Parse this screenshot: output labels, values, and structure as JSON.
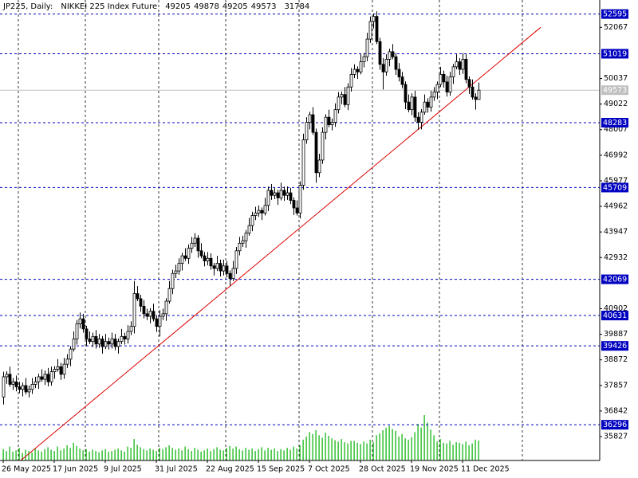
{
  "chart_data": {
    "type": "candlestick",
    "symbol": "JP225, Daily:",
    "description": "NIKKEI 225 Index Future",
    "categories": [
      "26 May 2025",
      null,
      null,
      null,
      null,
      null,
      null,
      null,
      null,
      null,
      null,
      null,
      null,
      null,
      null,
      null,
      "17 Jun 2025",
      null,
      null,
      null,
      null,
      null,
      null,
      null,
      null,
      null,
      null,
      null,
      null,
      null,
      null,
      null,
      "9 Jul 2025",
      null,
      null,
      null,
      null,
      null,
      null,
      null,
      null,
      null,
      null,
      null,
      null,
      null,
      null,
      null,
      "31 Jul 2025",
      null,
      null,
      null,
      null,
      null,
      null,
      null,
      null,
      null,
      null,
      null,
      null,
      null,
      null,
      null,
      "22 Aug 2025",
      null,
      null,
      null,
      null,
      null,
      null,
      null,
      null,
      null,
      null,
      null,
      null,
      null,
      null,
      null,
      "15 Sep 2025",
      null,
      null,
      null,
      null,
      null,
      null,
      null,
      null,
      null,
      null,
      null,
      null,
      null,
      null,
      null,
      "7 Oct 2025",
      null,
      null,
      null,
      null,
      null,
      null,
      null,
      null,
      null,
      null,
      null,
      null,
      null,
      null,
      null,
      "28 Oct 2025",
      null,
      null,
      null,
      null,
      null,
      null,
      null,
      null,
      null,
      null,
      null,
      null,
      null,
      null,
      null,
      "19 Nov 2025",
      null,
      null,
      null,
      null,
      null,
      null,
      null,
      null,
      null,
      null,
      null,
      null,
      null,
      null,
      null,
      "11 Dec 2025",
      null,
      null,
      null,
      null,
      null
    ],
    "open": [
      37400,
      38200,
      38300,
      37900,
      38000,
      37800,
      37700,
      37850,
      37600,
      37700,
      37900,
      38000,
      38200,
      38100,
      38300,
      38000,
      38400,
      38500,
      38600,
      38300,
      38700,
      38900,
      39300,
      39700,
      40300,
      40500,
      40100,
      39700,
      39600,
      39800,
      39500,
      39700,
      39400,
      39600,
      39500,
      39700,
      39400,
      39600,
      39800,
      39700,
      40000,
      40200,
      41500,
      41300,
      41000,
      40700,
      40600,
      40800,
      40500,
      40200,
      40600,
      40700,
      41200,
      41700,
      42300,
      42400,
      42700,
      43000,
      42900,
      43300,
      43500,
      43700,
      43200,
      43000,
      42800,
      42900,
      42600,
      42500,
      42700,
      42400,
      42600,
      42300,
      42100,
      42500,
      43200,
      43500,
      43600,
      43900,
      44200,
      44600,
      44700,
      44800,
      44700,
      45000,
      45600,
      45400,
      45500,
      45300,
      45600,
      45400,
      45500,
      45200,
      44900,
      44700,
      45800,
      47600,
      48300,
      48600,
      47900,
      46300,
      46800,
      47900,
      48500,
      48200,
      48300,
      48800,
      49300,
      49400,
      49000,
      49700,
      50200,
      50400,
      50300,
      50700,
      50900,
      51600,
      52300,
      52500,
      51500,
      50600,
      50300,
      50800,
      51100,
      50900,
      50400,
      50100,
      49800,
      49100,
      48800,
      49300,
      48500,
      48300,
      48700,
      49100,
      48900,
      49300,
      49500,
      49800,
      50200,
      49900,
      49500,
      50100,
      50500,
      50700,
      50400,
      50800,
      50000,
      49700,
      49300,
      49205
    ],
    "high": [
      38400,
      38420,
      38600,
      38150,
      38250,
      38000,
      37970,
      38150,
      37850,
      38150,
      38200,
      38320,
      38500,
      38450,
      38550,
      38600,
      38620,
      38900,
      38750,
      38950,
      39100,
      39420,
      40000,
      40450,
      40750,
      40700,
      40220,
      40000,
      39950,
      40050,
      39900,
      39820,
      39900,
      39750,
      39950,
      39900,
      39720,
      40100,
      39950,
      40250,
      40400,
      42000,
      41800,
      41450,
      41250,
      40900,
      40920,
      41100,
      40650,
      40850,
      40900,
      41320,
      42000,
      42450,
      42650,
      42900,
      43120,
      43300,
      43450,
      43750,
      43900,
      43820,
      43500,
      43150,
      43150,
      43100,
      42720,
      43000,
      42850,
      42850,
      42800,
      42420,
      42800,
      43350,
      43750,
      43800,
      44020,
      44500,
      44750,
      44950,
      45000,
      44920,
      45300,
      45750,
      45850,
      45700,
      45620,
      45900,
      45750,
      45750,
      45700,
      45320,
      45200,
      45950,
      47850,
      48500,
      48720,
      48900,
      48050,
      47050,
      48100,
      48620,
      48800,
      48450,
      49050,
      49500,
      49520,
      49700,
      49850,
      50450,
      50600,
      50520,
      51000,
      51050,
      51850,
      52500,
      52620,
      52700,
      51650,
      50850,
      51000,
      51220,
      51400,
      51050,
      50650,
      50300,
      49920,
      49400,
      49450,
      49550,
      48700,
      48820,
      49400,
      49250,
      49550,
      49700,
      49920,
      50500,
      50350,
      50150,
      50300,
      50620,
      51000,
      50850,
      51050,
      51000,
      50120,
      50000,
      49450,
      49878
    ],
    "low": [
      37100,
      37920,
      37800,
      37680,
      37620,
      37550,
      37420,
      37500,
      37380,
      37520,
      37750,
      37720,
      38000,
      37880,
      37820,
      37850,
      38120,
      38400,
      38080,
      38120,
      38550,
      38620,
      39200,
      39480,
      40120,
      39950,
      39420,
      39500,
      39380,
      39320,
      39350,
      39120,
      39300,
      39280,
      39320,
      39250,
      39120,
      39500,
      39480,
      39520,
      39850,
      39920,
      41200,
      40780,
      40520,
      40450,
      40320,
      40400,
      39980,
      39800,
      40450,
      40420,
      41100,
      41480,
      42120,
      42250,
      42420,
      42800,
      42680,
      43120,
      43350,
      42920,
      42900,
      42580,
      42620,
      42450,
      42220,
      42400,
      42180,
      42220,
      42150,
      41820,
      42000,
      42280,
      43020,
      43350,
      43320,
      43800,
      43980,
      44420,
      44550,
      44420,
      44600,
      44780,
      45220,
      45250,
      45020,
      45200,
      45180,
      45220,
      45050,
      44620,
      44600,
      44480,
      45620,
      47450,
      48020,
      47800,
      45900,
      46120,
      46650,
      47620,
      48100,
      47980,
      48120,
      48650,
      49020,
      48900,
      48780,
      49520,
      50050,
      50020,
      50200,
      50480,
      50720,
      51450,
      52020,
      51400,
      50380,
      49600,
      50150,
      50520,
      50800,
      50180,
      49920,
      49650,
      48820,
      48700,
      48580,
      48320,
      48000,
      48020,
      48600,
      48680,
      48720,
      49150,
      49220,
      49700,
      49680,
      49320,
      49350,
      49820,
      50400,
      50180,
      50220,
      49850,
      49420,
      49200,
      48800,
      49205
    ],
    "close": [
      38200,
      38300,
      37900,
      38000,
      37800,
      37700,
      37850,
      37600,
      37700,
      37900,
      38000,
      38200,
      38100,
      38300,
      38000,
      38400,
      38500,
      38600,
      38300,
      38700,
      38900,
      39300,
      39700,
      40300,
      40500,
      40100,
      39700,
      39600,
      39800,
      39500,
      39700,
      39400,
      39600,
      39500,
      39700,
      39400,
      39600,
      39800,
      39700,
      40000,
      40200,
      41500,
      41300,
      41000,
      40700,
      40600,
      40800,
      40500,
      40200,
      40600,
      40700,
      41200,
      41700,
      42300,
      42400,
      42700,
      43000,
      42900,
      43300,
      43500,
      43700,
      43200,
      43000,
      42800,
      42900,
      42600,
      42500,
      42700,
      42400,
      42600,
      42300,
      42100,
      42500,
      43200,
      43500,
      43600,
      43900,
      44200,
      44600,
      44700,
      44800,
      44700,
      45000,
      45600,
      45400,
      45500,
      45300,
      45600,
      45400,
      45500,
      45200,
      44900,
      44700,
      45800,
      47600,
      48300,
      48600,
      47900,
      46300,
      46800,
      47900,
      48500,
      48200,
      48300,
      48800,
      49300,
      49400,
      49000,
      49700,
      50200,
      50400,
      50300,
      50700,
      50900,
      51600,
      52300,
      52500,
      51500,
      50600,
      50300,
      50800,
      51100,
      50900,
      50400,
      50100,
      49800,
      49100,
      48800,
      49300,
      48500,
      48300,
      48700,
      49100,
      48900,
      49300,
      49500,
      49800,
      50200,
      49900,
      49500,
      50100,
      50500,
      50700,
      50400,
      50800,
      50000,
      49700,
      49300,
      49205,
      49573
    ],
    "volume": [
      18000,
      15000,
      22000,
      14000,
      16000,
      20000,
      12000,
      17000,
      15000,
      13000,
      19000,
      16000,
      14000,
      18000,
      21000,
      17000,
      15000,
      22000,
      16000,
      19000,
      24000,
      20000,
      28000,
      23000,
      19000,
      16000,
      18000,
      14000,
      17000,
      15000,
      13000,
      16000,
      18000,
      14000,
      15000,
      17000,
      19000,
      16000,
      14000,
      22000,
      20000,
      34000,
      25000,
      21000,
      18000,
      16000,
      19000,
      17000,
      15000,
      20000,
      18000,
      21000,
      24000,
      20000,
      17000,
      19000,
      16000,
      22000,
      18000,
      15000,
      20000,
      17000,
      14000,
      16000,
      19000,
      15000,
      18000,
      21000,
      17000,
      16000,
      20000,
      23000,
      19000,
      22000,
      18000,
      16000,
      20000,
      17000,
      19000,
      15000,
      18000,
      21000,
      16000,
      20000,
      17000,
      19000,
      15000,
      18000,
      16000,
      20000,
      17000,
      22000,
      19000,
      24000,
      33000,
      38000,
      45000,
      42000,
      48000,
      40000,
      36000,
      44000,
      39000,
      35000,
      32000,
      30000,
      34000,
      29000,
      27000,
      31000,
      31000,
      28000,
      26000,
      30000,
      27000,
      33000,
      29000,
      40000,
      43000,
      48000,
      52000,
      55000,
      50000,
      47000,
      38000,
      42000,
      35000,
      33000,
      37000,
      45000,
      58000,
      52000,
      72000,
      60000,
      49000,
      40000,
      30000,
      34000,
      28000,
      27000,
      31000,
      25000,
      29000,
      28000,
      26000,
      30000,
      24000,
      27000,
      33000,
      31784
    ],
    "ylim": [
      34879,
      53152
    ],
    "yticks": [
      35827,
      36842,
      37857,
      38872,
      39887,
      40902,
      42932,
      43947,
      44962,
      45977,
      46992,
      48007,
      49022,
      50037,
      52067
    ],
    "levels": [
      52595,
      51019,
      48283,
      45709,
      42069,
      40631,
      39426,
      36296
    ],
    "trendline": {
      "x": [
        5.5,
        168.5
      ],
      "y": [
        34879,
        52067
      ],
      "color": "#e00000"
    },
    "up_color": "#ffffff",
    "down_color": "#000000",
    "volume_color": "#00b000",
    "level_color": "#0000c0",
    "grid": true
  }
}
